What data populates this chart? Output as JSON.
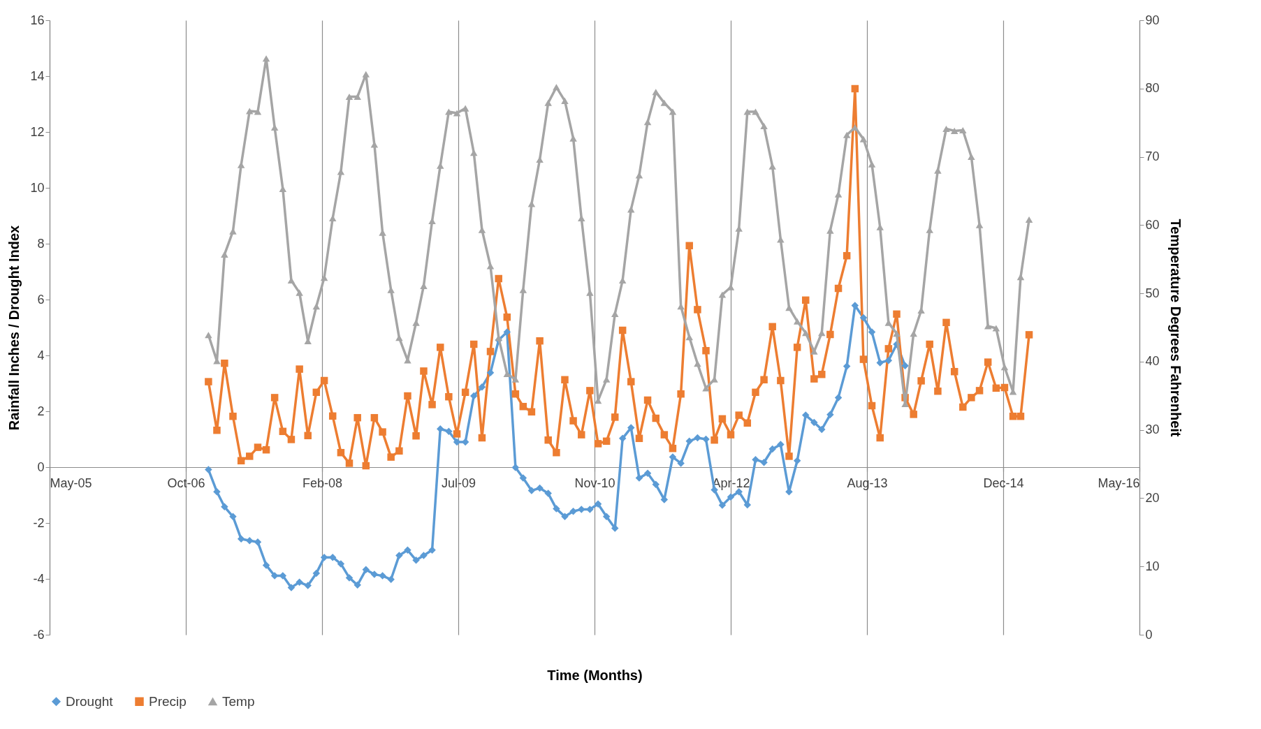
{
  "chart_data": {
    "type": "line",
    "xlabel": "Time (Months)",
    "ylabel": "Rainfall Inches / Drought Index",
    "y2label": "Temperature Degrees Fahrenheit",
    "x": [
      "2007-01",
      "2007-02",
      "2007-03",
      "2007-04",
      "2007-05",
      "2007-06",
      "2007-07",
      "2007-08",
      "2007-09",
      "2007-10",
      "2007-11",
      "2007-12",
      "2008-01",
      "2008-02",
      "2008-03",
      "2008-04",
      "2008-05",
      "2008-06",
      "2008-07",
      "2008-08",
      "2008-09",
      "2008-10",
      "2008-11",
      "2008-12",
      "2009-01",
      "2009-02",
      "2009-03",
      "2009-04",
      "2009-05",
      "2009-06",
      "2009-07",
      "2009-08",
      "2009-09",
      "2009-10",
      "2009-11",
      "2009-12",
      "2010-01",
      "2010-02",
      "2010-03",
      "2010-04",
      "2010-05",
      "2010-06",
      "2010-07",
      "2010-08",
      "2010-09",
      "2010-10",
      "2010-11",
      "2010-12",
      "2011-01",
      "2011-02",
      "2011-03",
      "2011-04",
      "2011-05",
      "2011-06",
      "2011-07",
      "2011-08",
      "2011-09",
      "2011-10",
      "2011-11",
      "2011-12",
      "2012-01",
      "2012-02",
      "2012-03",
      "2012-04",
      "2012-05",
      "2012-06",
      "2012-07",
      "2012-08",
      "2012-09",
      "2012-10",
      "2012-11",
      "2012-12",
      "2013-01",
      "2013-02",
      "2013-03",
      "2013-04",
      "2013-05",
      "2013-06",
      "2013-07",
      "2013-08",
      "2013-09",
      "2013-10",
      "2013-11",
      "2013-12",
      "2014-01",
      "2014-02",
      "2014-03",
      "2014-04",
      "2014-05",
      "2014-06",
      "2014-07",
      "2014-08",
      "2014-09",
      "2014-10",
      "2014-11",
      "2014-12",
      "2015-01",
      "2015-02",
      "2015-03",
      "2015-04"
    ],
    "xlim": [
      "2005-05-28",
      "2016-05-10"
    ],
    "xticks": [
      {
        "value": "2005-05-28",
        "label": "May-05"
      },
      {
        "value": "2006-10-10",
        "label": "Oct-06"
      },
      {
        "value": "2008-02-22",
        "label": "Feb-08"
      },
      {
        "value": "2009-07-06",
        "label": "Jul-09"
      },
      {
        "value": "2010-11-18",
        "label": "Nov-10"
      },
      {
        "value": "2012-04-01",
        "label": "Apr-12"
      },
      {
        "value": "2013-08-14",
        "label": "Aug-13"
      },
      {
        "value": "2014-12-27",
        "label": "Dec-14"
      },
      {
        "value": "2016-05-10",
        "label": "May-16"
      }
    ],
    "ylim": [
      -6,
      16
    ],
    "yticks": [
      -6,
      -4,
      -2,
      0,
      2,
      4,
      6,
      8,
      10,
      12,
      14,
      16
    ],
    "y2lim": [
      0,
      90
    ],
    "y2ticks": [
      0,
      10,
      20,
      30,
      40,
      50,
      60,
      70,
      80,
      90
    ],
    "grid": "x",
    "legend": "bottom",
    "series": [
      {
        "name": "Drought",
        "color": "#5b9bd5",
        "marker": "diamond",
        "values": [
          -0.09,
          -0.88,
          -1.42,
          -1.77,
          -2.57,
          -2.63,
          -2.68,
          -3.51,
          -3.89,
          -3.89,
          -4.31,
          -4.12,
          -4.24,
          -3.8,
          -3.23,
          -3.23,
          -3.46,
          -3.96,
          -4.22,
          -3.67,
          -3.84,
          -3.89,
          -4.02,
          -3.16,
          -2.97,
          -3.33,
          -3.16,
          -2.97,
          1.37,
          1.28,
          0.9,
          0.9,
          2.55,
          2.87,
          3.38,
          4.55,
          4.84,
          -0.01,
          -0.39,
          -0.84,
          -0.75,
          -0.94,
          -1.49,
          -1.77,
          -1.58,
          -1.51,
          -1.51,
          -1.32,
          -1.77,
          -2.19,
          1.03,
          1.41,
          -0.39,
          -0.22,
          -0.62,
          -1.16,
          0.36,
          0.14,
          0.93,
          1.05,
          1.0,
          -0.81,
          -1.36,
          -1.07,
          -0.88,
          -1.35,
          0.27,
          0.17,
          0.65,
          0.81,
          -0.88,
          0.23,
          1.86,
          1.6,
          1.35,
          1.88,
          2.49,
          3.61,
          5.79,
          5.35,
          4.84,
          3.74,
          3.82,
          4.4,
          3.63,
          null,
          null,
          null,
          null,
          null,
          null,
          null,
          null,
          null,
          null,
          null,
          null,
          null,
          null,
          null
        ]
      },
      {
        "name": "Precip",
        "color": "#ed7d31",
        "marker": "square",
        "values": [
          3.06,
          1.32,
          3.72,
          1.82,
          0.23,
          0.39,
          0.71,
          0.62,
          2.49,
          1.28,
          0.99,
          3.51,
          1.13,
          2.68,
          3.1,
          1.83,
          0.52,
          0.14,
          1.77,
          0.05,
          1.77,
          1.26,
          0.36,
          0.58,
          2.55,
          1.12,
          3.44,
          2.24,
          4.29,
          2.52,
          1.19,
          2.68,
          4.4,
          1.05,
          4.14,
          6.75,
          5.37,
          2.62,
          2.17,
          1.98,
          4.52,
          0.97,
          0.52,
          3.13,
          1.66,
          1.16,
          2.74,
          0.84,
          0.93,
          1.79,
          4.9,
          3.06,
          1.03,
          2.4,
          1.75,
          1.16,
          0.67,
          2.62,
          7.93,
          5.64,
          4.17,
          0.97,
          1.73,
          1.16,
          1.86,
          1.58,
          2.68,
          3.13,
          5.03,
          3.1,
          0.39,
          4.29,
          5.98,
          3.16,
          3.32,
          4.75,
          6.4,
          7.57,
          13.55,
          3.86,
          2.2,
          1.05,
          4.24,
          5.48,
          2.49,
          1.89,
          3.09,
          4.4,
          2.72,
          5.18,
          3.42,
          2.15,
          2.49,
          2.74,
          3.76,
          2.83,
          2.85,
          1.82,
          1.82,
          4.74
        ]
      },
      {
        "name": "Temp",
        "color": "#a5a5a5",
        "marker": "triangle",
        "axis": "y2",
        "values": [
          43.9,
          40.1,
          55.7,
          59.1,
          68.8,
          76.7,
          76.6,
          84.4,
          74.3,
          65.3,
          51.9,
          50.1,
          43.0,
          48.1,
          52.3,
          61.0,
          67.8,
          78.8,
          78.8,
          82.1,
          71.8,
          58.9,
          50.5,
          43.5,
          40.2,
          45.7,
          51.1,
          60.6,
          68.7,
          76.6,
          76.4,
          77.1,
          70.6,
          59.3,
          54.0,
          43.5,
          38.2,
          37.4,
          50.5,
          63.1,
          69.6,
          77.9,
          80.2,
          78.2,
          72.7,
          61.0,
          50.1,
          34.3,
          37.4,
          47.0,
          51.9,
          62.3,
          67.3,
          75.1,
          79.5,
          77.9,
          76.6,
          48.1,
          43.6,
          39.7,
          36.1,
          37.4,
          49.8,
          50.9,
          59.5,
          76.6,
          76.6,
          74.5,
          68.6,
          57.9,
          47.9,
          45.9,
          44.2,
          41.5,
          44.2,
          59.2,
          64.5,
          73.2,
          74.3,
          72.6,
          68.9,
          59.7,
          45.7,
          44.1,
          33.8,
          44.1,
          47.5,
          59.3,
          68.0,
          74.1,
          73.8,
          73.9,
          70.0,
          60.0,
          45.2,
          44.9,
          39.2,
          35.6,
          52.4,
          60.8
        ]
      }
    ]
  }
}
